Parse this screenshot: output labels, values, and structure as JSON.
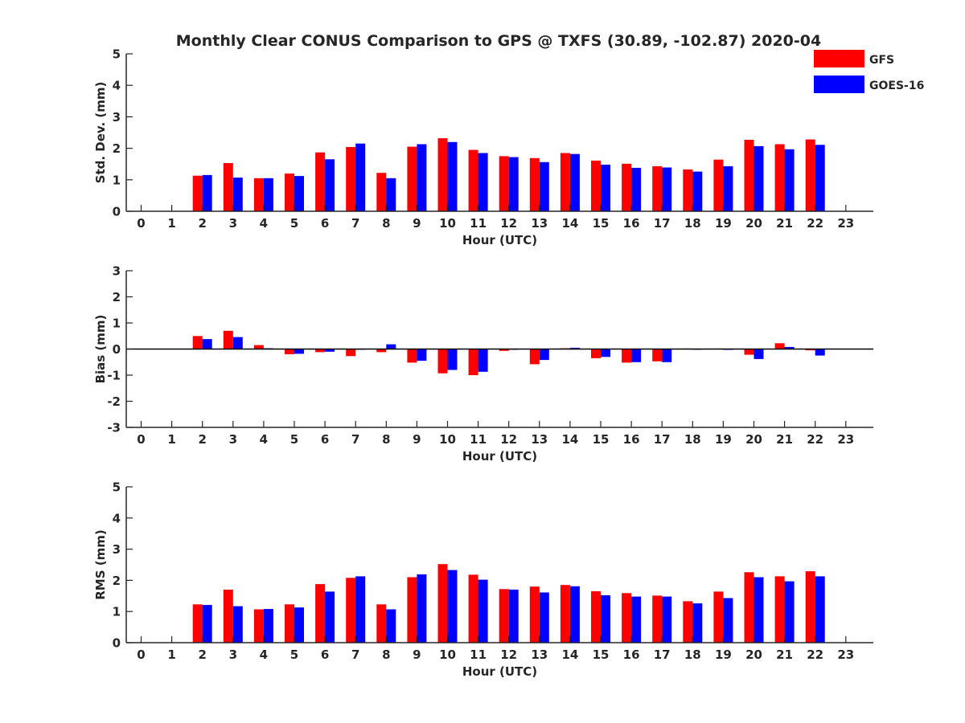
{
  "chart_data": [
    {
      "type": "bar",
      "title": "Monthly Clear CONUS Comparison to GPS @ TXFS (30.89, -102.87) 2020-04",
      "xlabel": "Hour (UTC)",
      "ylabel": "Std. Dev. (mm)",
      "ylim": [
        0,
        5
      ],
      "yticks": [
        0,
        1,
        2,
        3,
        4,
        5
      ],
      "categories": [
        "0",
        "1",
        "2",
        "3",
        "4",
        "5",
        "6",
        "7",
        "8",
        "9",
        "10",
        "11",
        "12",
        "13",
        "14",
        "15",
        "16",
        "17",
        "18",
        "19",
        "20",
        "21",
        "22",
        "23"
      ],
      "series": [
        {
          "name": "GFS",
          "color": "#ff0000",
          "values": [
            null,
            null,
            1.13,
            1.53,
            1.05,
            1.2,
            1.87,
            2.04,
            1.22,
            2.05,
            2.32,
            1.95,
            1.75,
            1.69,
            1.85,
            1.61,
            1.51,
            1.43,
            1.33,
            1.64,
            2.27,
            2.13,
            2.28,
            null
          ]
        },
        {
          "name": "GOES-16",
          "color": "#0000ff",
          "values": [
            null,
            null,
            1.15,
            1.07,
            1.05,
            1.12,
            1.65,
            2.15,
            1.05,
            2.13,
            2.2,
            1.85,
            1.72,
            1.56,
            1.82,
            1.48,
            1.38,
            1.39,
            1.26,
            1.43,
            2.07,
            1.97,
            2.11,
            null
          ]
        }
      ],
      "legend": "top-right",
      "grid": false
    },
    {
      "type": "bar",
      "xlabel": "Hour (UTC)",
      "ylabel": "Bias (mm)",
      "ylim": [
        -3,
        3
      ],
      "yticks": [
        -3,
        -2,
        -1,
        0,
        1,
        2,
        3
      ],
      "zero_line": true,
      "categories": [
        "0",
        "1",
        "2",
        "3",
        "4",
        "5",
        "6",
        "7",
        "8",
        "9",
        "10",
        "11",
        "12",
        "13",
        "14",
        "15",
        "16",
        "17",
        "18",
        "19",
        "20",
        "21",
        "22",
        "23"
      ],
      "series": [
        {
          "name": "GFS",
          "color": "#ff0000",
          "values": [
            null,
            null,
            0.5,
            0.7,
            0.15,
            -0.2,
            -0.12,
            -0.27,
            -0.12,
            -0.52,
            -0.93,
            -1.0,
            -0.07,
            -0.58,
            0.03,
            -0.35,
            -0.52,
            -0.47,
            0.02,
            0.02,
            -0.22,
            0.22,
            -0.05,
            null
          ]
        },
        {
          "name": "GOES-16",
          "color": "#0000ff",
          "values": [
            null,
            null,
            0.38,
            0.46,
            0.03,
            -0.18,
            -0.1,
            0.0,
            0.18,
            -0.45,
            -0.8,
            -0.87,
            -0.02,
            -0.42,
            0.05,
            -0.3,
            -0.5,
            -0.5,
            0.0,
            -0.03,
            -0.38,
            0.08,
            -0.25,
            null
          ]
        }
      ],
      "grid": false
    },
    {
      "type": "bar",
      "xlabel": "Hour (UTC)",
      "ylabel": "RMS (mm)",
      "ylim": [
        0,
        5
      ],
      "yticks": [
        0,
        1,
        2,
        3,
        4,
        5
      ],
      "categories": [
        "0",
        "1",
        "2",
        "3",
        "4",
        "5",
        "6",
        "7",
        "8",
        "9",
        "10",
        "11",
        "12",
        "13",
        "14",
        "15",
        "16",
        "17",
        "18",
        "19",
        "20",
        "21",
        "22",
        "23"
      ],
      "series": [
        {
          "name": "GFS",
          "color": "#ff0000",
          "values": [
            null,
            null,
            1.23,
            1.7,
            1.07,
            1.23,
            1.88,
            2.08,
            1.23,
            2.1,
            2.52,
            2.18,
            1.72,
            1.8,
            1.85,
            1.65,
            1.59,
            1.51,
            1.33,
            1.64,
            2.26,
            2.13,
            2.29,
            null
          ]
        },
        {
          "name": "GOES-16",
          "color": "#0000ff",
          "values": [
            null,
            null,
            1.21,
            1.17,
            1.08,
            1.13,
            1.64,
            2.13,
            1.07,
            2.19,
            2.33,
            2.02,
            1.7,
            1.61,
            1.81,
            1.52,
            1.48,
            1.48,
            1.26,
            1.43,
            2.1,
            1.97,
            2.13,
            null
          ]
        }
      ],
      "grid": false
    }
  ]
}
